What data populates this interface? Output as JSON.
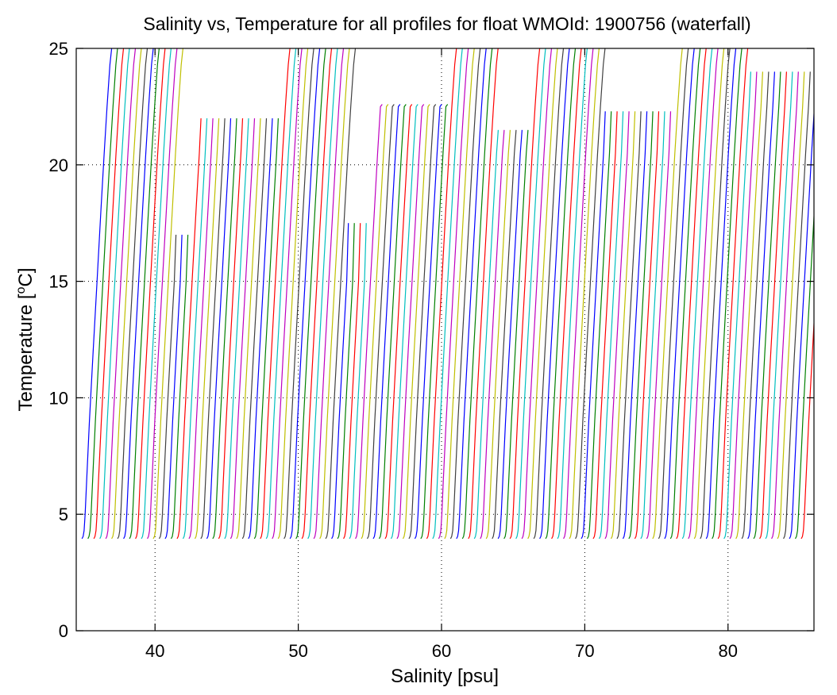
{
  "chart_data": {
    "type": "line",
    "title": "Salinity vs, Temperature for all profiles for float WMOId: 1900756 (waterfall)",
    "xlabel": "Salinity [psu]",
    "ylabel_main": "Temperature [",
    "ylabel_sup": "o",
    "ylabel_end": "C]",
    "xlim": [
      34.5,
      86
    ],
    "ylim": [
      0,
      25
    ],
    "xticks": [
      40,
      50,
      60,
      70,
      80
    ],
    "xtick_labels": [
      "40",
      "50",
      "60",
      "70",
      "80"
    ],
    "yticks": [
      0,
      5,
      10,
      15,
      20,
      25
    ],
    "ytick_labels": [
      "0",
      "5",
      "10",
      "15",
      "20",
      "25"
    ],
    "grid": true,
    "legend": "none",
    "profile_colors": [
      "#0000ff",
      "#008000",
      "#ff0000",
      "#00bfbf",
      "#bf00bf",
      "#bfbf00",
      "#404040"
    ],
    "waterfall": {
      "profile_count": 122,
      "first_offset": 34.9,
      "offset_step": 0.415,
      "shape": [
        [
          0.0,
          3.95
        ],
        [
          0.08,
          4.05
        ],
        [
          0.15,
          4.3
        ],
        [
          0.22,
          5.0
        ],
        [
          0.33,
          6.5
        ],
        [
          0.52,
          9.0
        ],
        [
          0.78,
          12.0
        ],
        [
          1.05,
          15.0
        ],
        [
          1.32,
          18.0
        ],
        [
          1.55,
          20.5
        ],
        [
          1.75,
          22.5
        ],
        [
          1.95,
          24.3
        ]
      ],
      "surface_groups": [
        {
          "from": 1,
          "to": 13,
          "peak": 25.0
        },
        {
          "from": 14,
          "to": 16,
          "peak": 17.0
        },
        {
          "from": 17,
          "to": 30,
          "peak": 22.0
        },
        {
          "from": 31,
          "to": 34,
          "peak": 25.0
        },
        {
          "from": 35,
          "to": 42,
          "peak": 25.0
        },
        {
          "from": 43,
          "to": 46,
          "peak": 17.5
        },
        {
          "from": 47,
          "to": 58,
          "peak": 22.6
        },
        {
          "from": 59,
          "to": 66,
          "peak": 25.0
        },
        {
          "from": 67,
          "to": 72,
          "peak": 21.5
        },
        {
          "from": 73,
          "to": 84,
          "peak": 25.0
        },
        {
          "from": 85,
          "to": 96,
          "peak": 22.3
        },
        {
          "from": 97,
          "to": 108,
          "peak": 25.0
        },
        {
          "from": 109,
          "to": 122,
          "peak": 24.0
        }
      ]
    }
  }
}
